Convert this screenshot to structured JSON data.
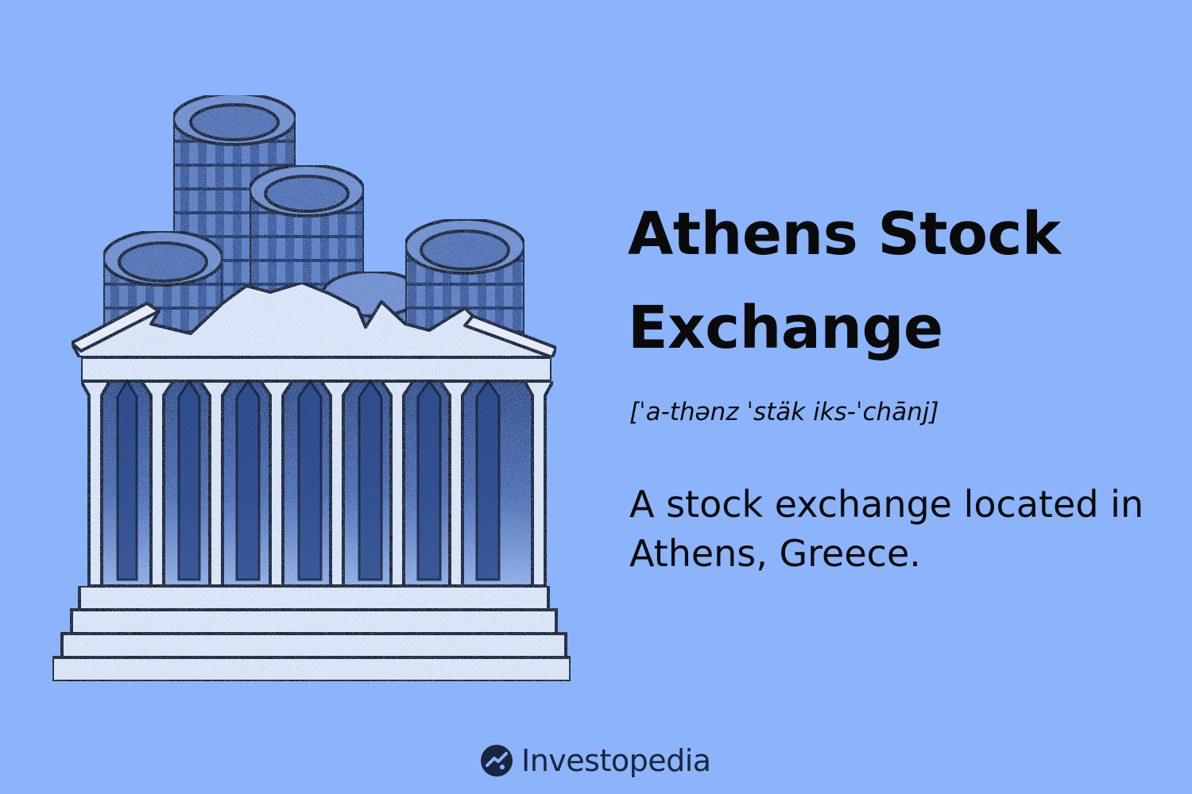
{
  "title": "Athens Stock Exchange",
  "pronunciation": "[ˈa-thənz ˈstäk iks-ˈchānj]",
  "definition": "A stock exchange located in Athens, Greece.",
  "brand": {
    "name": "Investopedia",
    "icon": "investopedia-logo-icon"
  },
  "colors": {
    "background": "#8bb4fb",
    "text": "#0a0a0a",
    "ink": "#1a1a1a",
    "coin_face": "#5b7ec4",
    "coin_side": "#34569a",
    "marble": "#d2e2fb"
  }
}
